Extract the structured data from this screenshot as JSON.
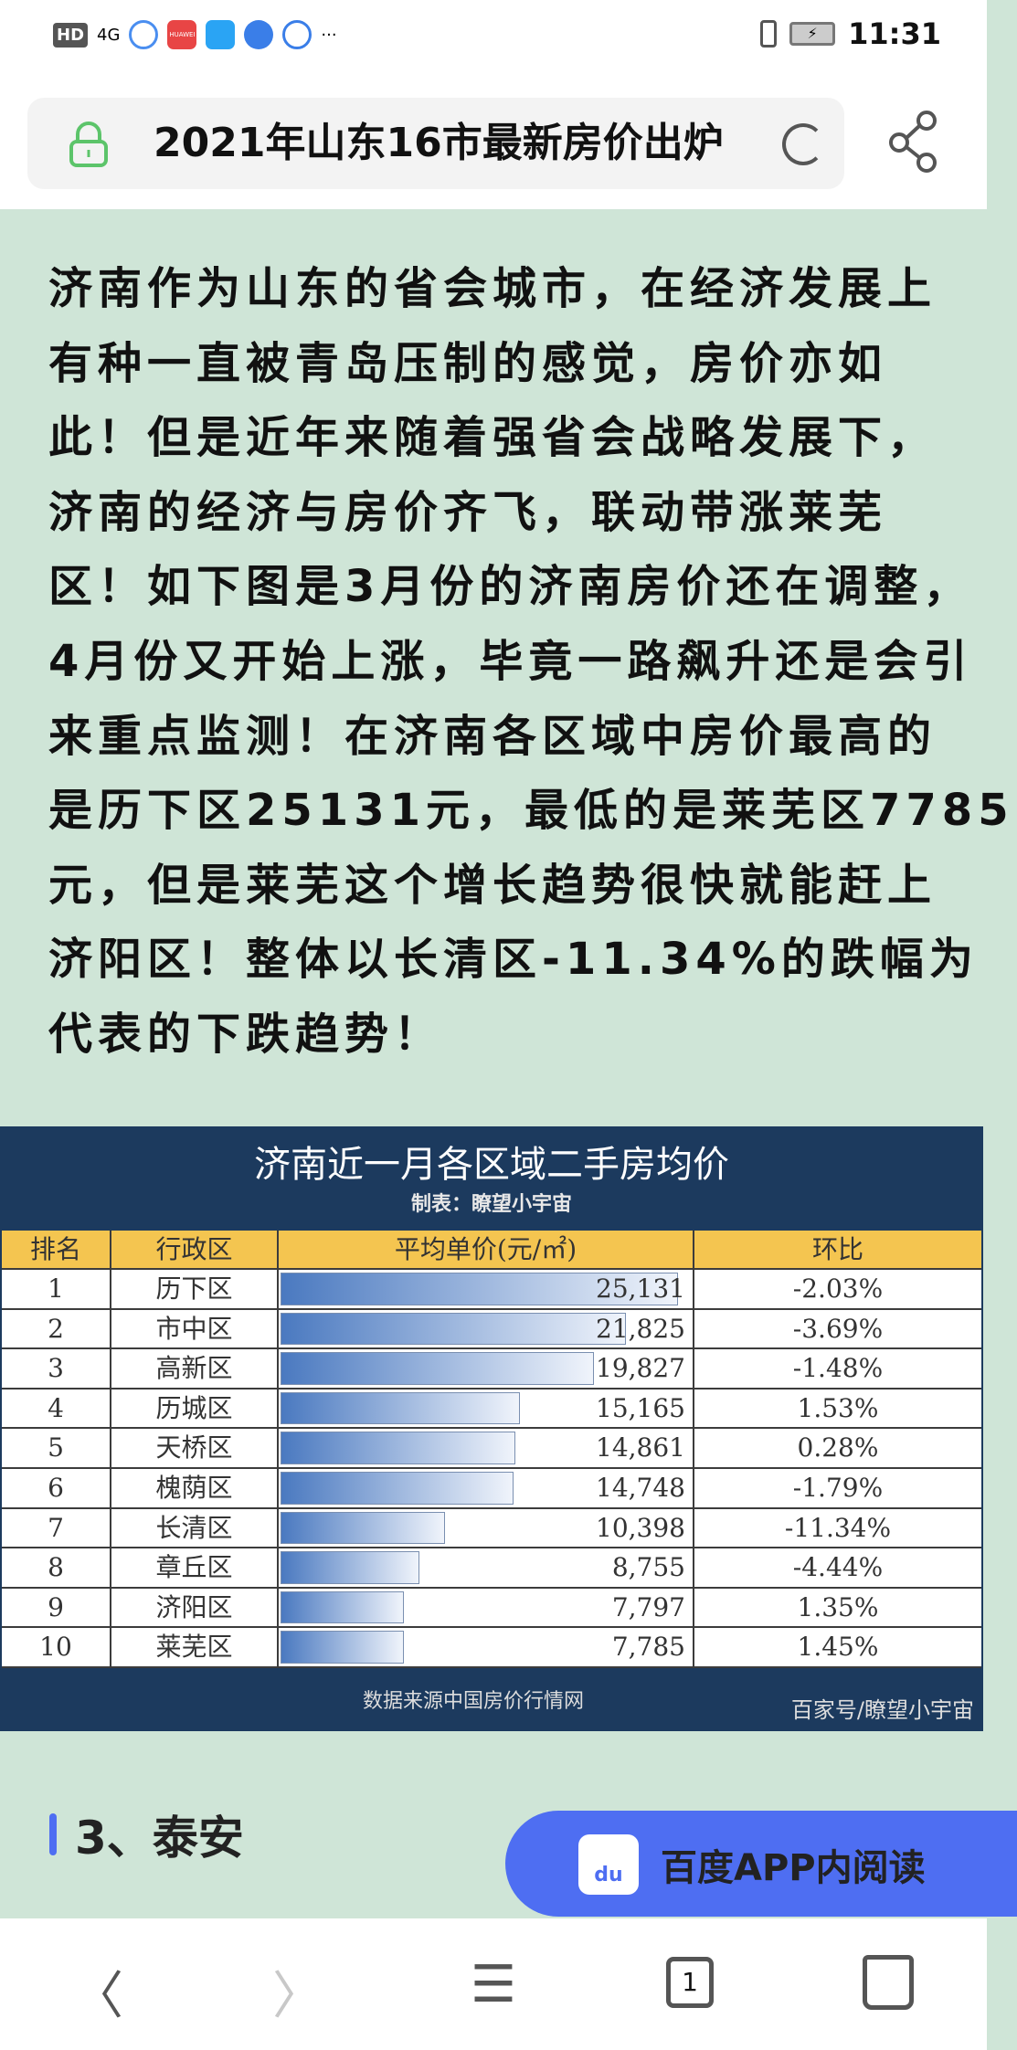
{
  "status_bar": {
    "left": "HD",
    "network": "4G",
    "brand_icon": "HUAWEI",
    "more": "···",
    "time": "11:31"
  },
  "header": {
    "title": "2021年山东16市最新房价出炉",
    "icons": [
      "lock-icon",
      "reload-icon",
      "share-icon"
    ]
  },
  "article": {
    "paragraph_lines": [
      "济南作为山东的省会城市，在经济发展上",
      "有种一直被青岛压制的感觉，房价亦如",
      "此！但是近年来随着强省会战略发展下，",
      "济南的经济与房价齐飞，联动带涨莱芜",
      "区！如下图是3月份的济南房价还在调整，",
      "4月份又开始上涨，毕竟一路飙升还是会引",
      "来重点监测！在济南各区域中房价最高的",
      "是历下区25131元，最低的是莱芜区7785",
      "元，但是莱芜这个增长趋势很快就能赶上",
      "济阳区！整体以长清区-11.34%的跌幅为",
      "代表的下跌趋势！"
    ],
    "section_heading": "3、泰安"
  },
  "table": {
    "title": "济南近一月各区域二手房均价",
    "subtitle": "制表：瞭望小宇宙",
    "headers": [
      "排名",
      "行政区",
      "平均单价(元/㎡)",
      "环比"
    ],
    "max_value": 25131,
    "rows": [
      {
        "rank": "1",
        "district": "历下区",
        "price": "25,131",
        "value": 25131,
        "change": "-2.03%"
      },
      {
        "rank": "2",
        "district": "市中区",
        "price": "21,825",
        "value": 21825,
        "change": "-3.69%"
      },
      {
        "rank": "3",
        "district": "高新区",
        "price": "19,827",
        "value": 19827,
        "change": "-1.48%"
      },
      {
        "rank": "4",
        "district": "历城区",
        "price": "15,165",
        "value": 15165,
        "change": "1.53%"
      },
      {
        "rank": "5",
        "district": "天桥区",
        "price": "14,861",
        "value": 14861,
        "change": "0.28%"
      },
      {
        "rank": "6",
        "district": "槐荫区",
        "price": "14,748",
        "value": 14748,
        "change": "-1.79%"
      },
      {
        "rank": "7",
        "district": "长清区",
        "price": "10,398",
        "value": 10398,
        "change": "-11.34%"
      },
      {
        "rank": "8",
        "district": "章丘区",
        "price": "8,755",
        "value": 8755,
        "change": "-4.44%"
      },
      {
        "rank": "9",
        "district": "济阳区",
        "price": "7,797",
        "value": 7797,
        "change": "1.35%"
      },
      {
        "rank": "10",
        "district": "莱芜区",
        "price": "7,785",
        "value": 7785,
        "change": "1.45%"
      }
    ],
    "source": "数据来源中国房价行情网",
    "brand": "百家号/瞭望小宇宙"
  },
  "baidu_button": {
    "label": "百度APP内阅读",
    "logo": "du"
  },
  "nav": {
    "back": "〈",
    "forward": "〉",
    "menu": "☰",
    "tabs_count": "1"
  },
  "colors": {
    "background": "#cfe5d7",
    "accent": "#4e6ef2",
    "table_header": "#f4c550",
    "table_title_bg": "#1c3a5e"
  }
}
